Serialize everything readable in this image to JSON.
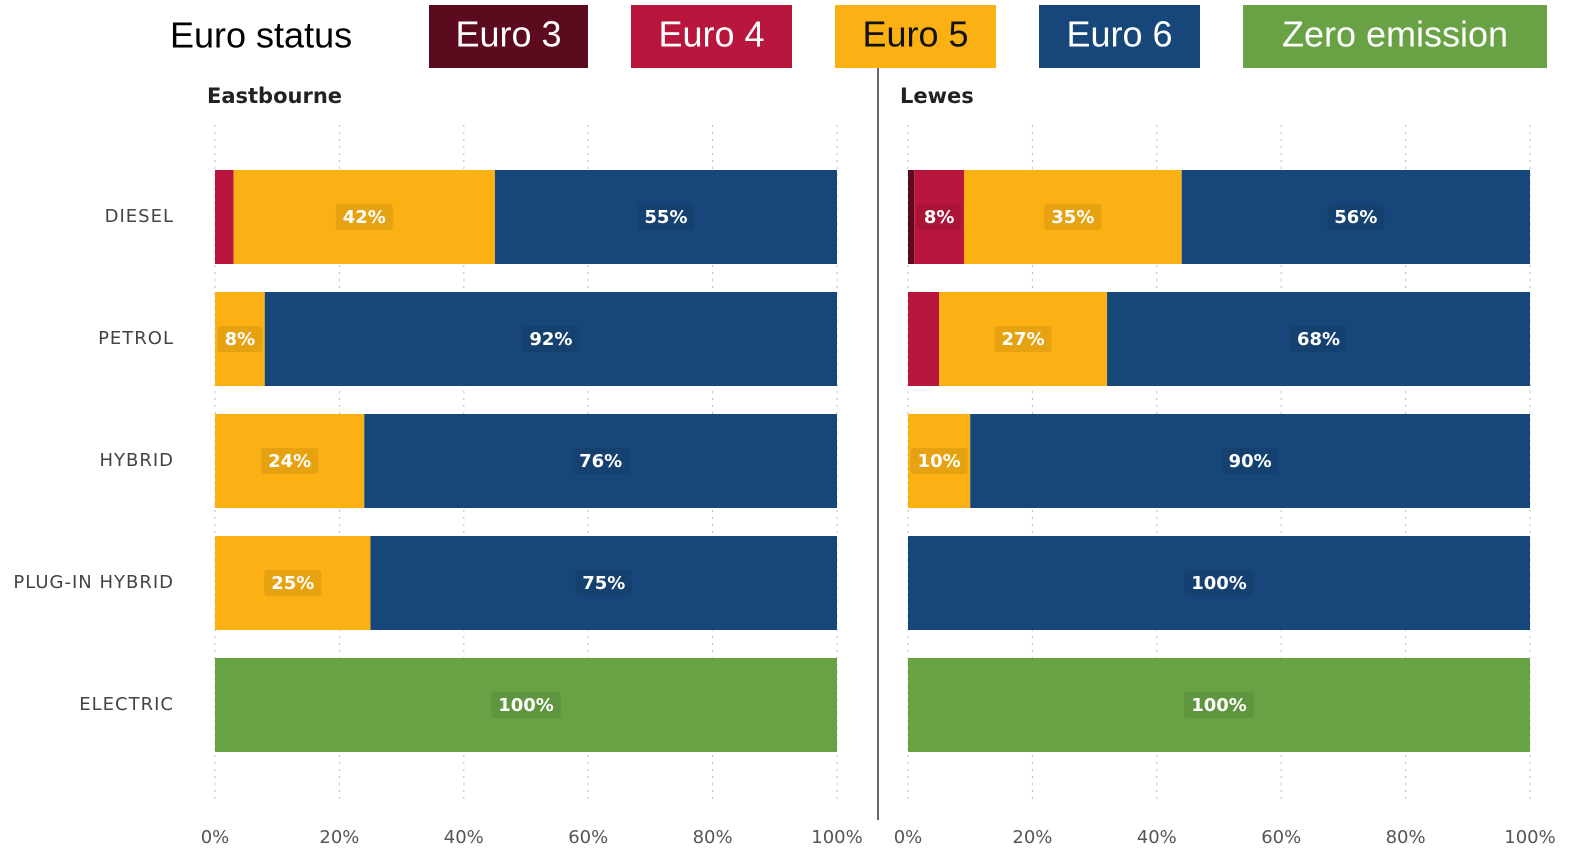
{
  "chart_data": [
    {
      "type": "bar",
      "orientation": "horizontal",
      "stacked": true,
      "title": "Eastbourne",
      "legend_title": "Euro status",
      "categories": [
        "DIESEL",
        "PETROL",
        "HYBRID",
        "PLUG-IN HYBRID",
        "ELECTRIC"
      ],
      "series": [
        {
          "name": "Euro 3",
          "color": "#5c0a1e",
          "values": [
            null,
            null,
            null,
            null,
            null
          ],
          "value_labels": [
            null,
            null,
            null,
            null,
            null
          ]
        },
        {
          "name": "Euro 4",
          "color": "#b8163c",
          "values": [
            3,
            null,
            null,
            null,
            null
          ],
          "value_labels": [
            null,
            null,
            null,
            null,
            null
          ]
        },
        {
          "name": "Euro 5",
          "color": "#fbb013",
          "values": [
            42,
            8,
            24,
            25,
            null
          ],
          "value_labels": [
            "42%",
            "8%",
            "24%",
            "25%",
            null
          ]
        },
        {
          "name": "Euro 6",
          "color": "#17477a",
          "values": [
            55,
            92,
            76,
            75,
            null
          ],
          "value_labels": [
            "55%",
            "92%",
            "76%",
            "75%",
            null
          ]
        },
        {
          "name": "Zero emission",
          "color": "#68a244",
          "values": [
            null,
            null,
            null,
            null,
            100
          ],
          "value_labels": [
            null,
            null,
            null,
            null,
            "100%"
          ]
        }
      ],
      "xlim": [
        0,
        100
      ],
      "xticks": [
        {
          "value": 0,
          "label": "0%"
        },
        {
          "value": 20,
          "label": "20%"
        },
        {
          "value": 40,
          "label": "40%"
        },
        {
          "value": 60,
          "label": "60%"
        },
        {
          "value": 80,
          "label": "80%"
        },
        {
          "value": 100,
          "label": "100%"
        }
      ],
      "grid": true
    },
    {
      "type": "bar",
      "orientation": "horizontal",
      "stacked": true,
      "title": "Lewes",
      "categories": [
        null,
        null,
        null,
        null,
        null
      ],
      "series": [
        {
          "color": "#5c0a1e",
          "values": [
            1,
            null,
            null,
            null,
            null
          ],
          "value_labels": [
            null,
            null,
            null,
            null,
            null
          ]
        },
        {
          "color": "#b8163c",
          "values": [
            8,
            5,
            null,
            null,
            null
          ],
          "value_labels": [
            "8%",
            null,
            null,
            null,
            null
          ]
        },
        {
          "color": "#fbb013",
          "values": [
            35,
            27,
            10,
            null,
            null
          ],
          "value_labels": [
            "35%",
            "27%",
            "10%",
            null,
            null
          ]
        },
        {
          "color": "#17477a",
          "values": [
            56,
            68,
            90,
            100,
            null
          ],
          "value_labels": [
            "56%",
            "68%",
            "90%",
            "100%",
            null
          ]
        },
        {
          "color": "#68a244",
          "values": [
            null,
            null,
            null,
            null,
            100
          ],
          "value_labels": [
            null,
            null,
            null,
            null,
            "100%"
          ]
        }
      ],
      "xlim": [
        0,
        100
      ],
      "xticks": [
        {
          "value": 0,
          "label": "0%"
        },
        {
          "value": 20,
          "label": "20%"
        },
        {
          "value": 40,
          "label": "40%"
        },
        {
          "value": 60,
          "label": "60%"
        },
        {
          "value": 80,
          "label": "80%"
        },
        {
          "value": 100,
          "label": "100%"
        }
      ],
      "grid": true
    }
  ]
}
